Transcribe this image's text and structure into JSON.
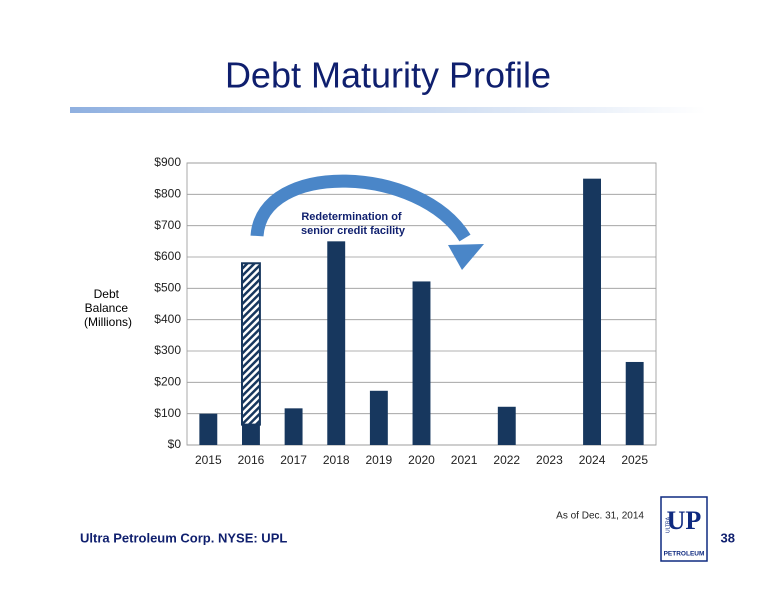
{
  "chart_data": {
    "type": "bar",
    "stacked": true,
    "title": "Debt Maturity Profile",
    "ylabel": [
      "Debt",
      "Balance",
      "(Millions)"
    ],
    "annotation": [
      "Redetermination of",
      "senior credit facility"
    ],
    "categories": [
      "2015",
      "2016",
      "2017",
      "2018",
      "2019",
      "2020",
      "2021",
      "2022",
      "2023",
      "2024",
      "2025"
    ],
    "series": [
      {
        "color": "#17375e",
        "values": [
          100,
          65,
          117,
          650,
          173,
          522,
          0,
          122,
          0,
          850,
          265
        ]
      },
      {
        "color": "#17375e",
        "hatched": true,
        "values": [
          null,
          515,
          null,
          null,
          null,
          null,
          null,
          null,
          null,
          null,
          null
        ]
      }
    ],
    "ylim": [
      0,
      900
    ],
    "yticks": [
      {
        "value": 0,
        "label": "$0"
      },
      {
        "value": 100,
        "label": "$100"
      },
      {
        "value": 200,
        "label": "$200"
      },
      {
        "value": 300,
        "label": "$300"
      },
      {
        "value": 400,
        "label": "$400"
      },
      {
        "value": 500,
        "label": "$500"
      },
      {
        "value": 600,
        "label": "$600"
      },
      {
        "value": 700,
        "label": "$700"
      },
      {
        "value": 800,
        "label": "$800"
      },
      {
        "value": 900,
        "label": "$900"
      }
    ],
    "grid": true
  },
  "note": "As of Dec. 31, 2014",
  "footer": "Ultra Petroleum Corp. NYSE: UPL",
  "page_number": "38",
  "logo": {
    "top": "ULTRA",
    "mark": "UP",
    "bottom": "PETROLEUM"
  }
}
